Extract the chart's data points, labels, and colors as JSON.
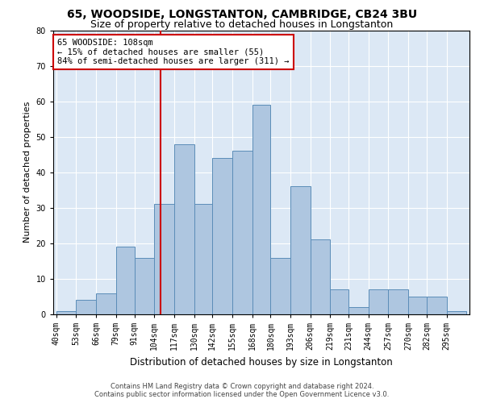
{
  "title1": "65, WOODSIDE, LONGSTANTON, CAMBRIDGE, CB24 3BU",
  "title2": "Size of property relative to detached houses in Longstanton",
  "xlabel": "Distribution of detached houses by size in Longstanton",
  "ylabel": "Number of detached properties",
  "footnote1": "Contains HM Land Registry data © Crown copyright and database right 2024.",
  "footnote2": "Contains public sector information licensed under the Open Government Licence v3.0.",
  "bin_labels": [
    "40sqm",
    "53sqm",
    "66sqm",
    "79sqm",
    "91sqm",
    "104sqm",
    "117sqm",
    "130sqm",
    "142sqm",
    "155sqm",
    "168sqm",
    "180sqm",
    "193sqm",
    "206sqm",
    "219sqm",
    "231sqm",
    "244sqm",
    "257sqm",
    "270sqm",
    "282sqm",
    "295sqm"
  ],
  "bin_lefts": [
    40,
    53,
    66,
    79,
    91,
    104,
    117,
    130,
    142,
    155,
    168,
    180,
    193,
    206,
    219,
    231,
    244,
    257,
    270,
    282,
    295
  ],
  "bin_widths": [
    13,
    13,
    13,
    12,
    13,
    13,
    13,
    12,
    13,
    13,
    12,
    13,
    13,
    13,
    12,
    13,
    13,
    13,
    12,
    13,
    13
  ],
  "bar_heights": [
    1,
    4,
    6,
    19,
    16,
    31,
    48,
    31,
    44,
    46,
    59,
    16,
    36,
    21,
    7,
    2,
    7,
    7,
    5,
    5,
    1
  ],
  "bar_color": "#aec6e0",
  "bar_edgecolor": "#5b8db8",
  "vline_x": 108,
  "vline_color": "#cc0000",
  "ylim": [
    0,
    80
  ],
  "yticks": [
    0,
    10,
    20,
    30,
    40,
    50,
    60,
    70,
    80
  ],
  "xlim_left": 38,
  "xlim_right": 310,
  "annotation_text": "65 WOODSIDE: 108sqm\n← 15% of detached houses are smaller (55)\n84% of semi-detached houses are larger (311) →",
  "annotation_box_color": "#cc0000",
  "bg_color": "#dce8f5",
  "grid_color": "#ffffff",
  "title_fontsize": 10,
  "subtitle_fontsize": 9,
  "ylabel_fontsize": 8,
  "xlabel_fontsize": 8.5,
  "tick_fontsize": 7,
  "footnote_fontsize": 6,
  "annot_fontsize": 7.5
}
